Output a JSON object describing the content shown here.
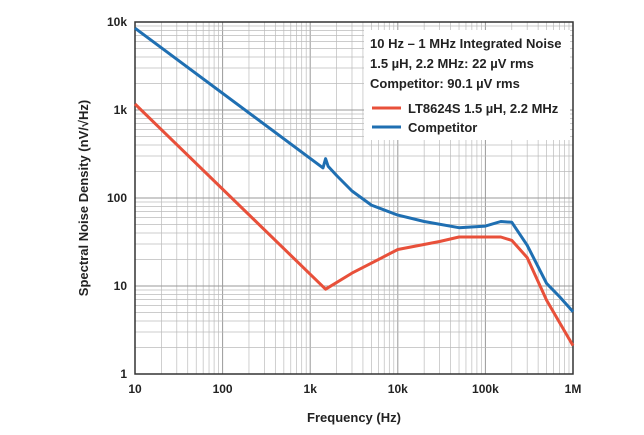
{
  "chart_data": {
    "type": "line",
    "xlabel": "Frequency (Hz)",
    "ylabel": "Spectral Noise Density (nV/√Hz)",
    "xscale": "log",
    "yscale": "log",
    "xlim": [
      10,
      1000000
    ],
    "ylim": [
      1,
      10000
    ],
    "grid": true,
    "xticks": [
      "10",
      "100",
      "1k",
      "10k",
      "100k",
      "1M"
    ],
    "yticks": [
      "1",
      "10",
      "100",
      "1k",
      "10k"
    ],
    "legend_placement": "top-right",
    "annotation": [
      "10 Hz – 1 MHz Integrated Noise",
      "1.5 µH, 2.2 MHz: 22 µV rms",
      "Competitor: 90.1 µV rms"
    ],
    "series": [
      {
        "name": "LT8624S 1.5 µH, 2.2 MHz",
        "color": "#e8503a",
        "x": [
          10,
          1500,
          3000,
          10000,
          30000,
          50000,
          150000,
          200000,
          300000,
          500000,
          1000000
        ],
        "y": [
          1170,
          9.2,
          14,
          26,
          32,
          36,
          36,
          33,
          21,
          6.9,
          2.1
        ]
      },
      {
        "name": "Competitor",
        "color": "#1f6fb2",
        "x": [
          10,
          1400,
          1500,
          1600,
          2000,
          3000,
          5000,
          10000,
          20000,
          50000,
          100000,
          150000,
          200000,
          300000,
          500000,
          700000,
          1000000
        ],
        "y": [
          8500,
          220,
          280,
          230,
          180,
          120,
          83,
          64,
          54,
          46,
          48,
          54,
          53,
          29,
          10.7,
          7.6,
          5.1
        ]
      }
    ]
  }
}
